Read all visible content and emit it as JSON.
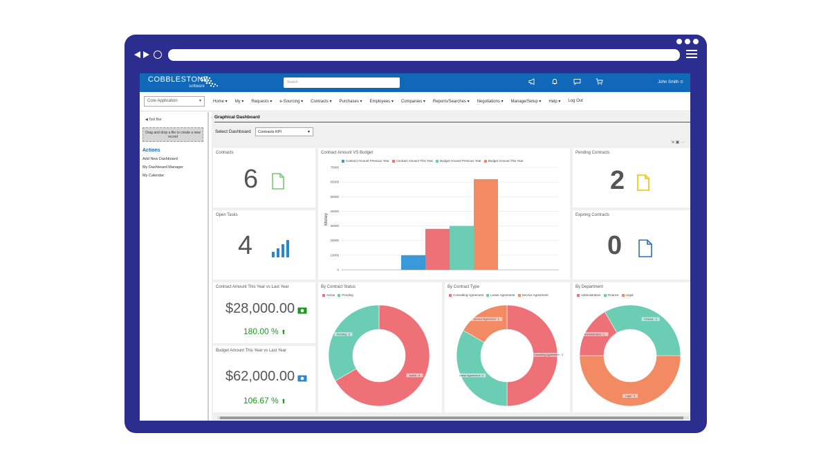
{
  "app": {
    "logo_text": "COBBLESTONE",
    "logo_sub": "software",
    "search_placeholder": "Search",
    "user_name": "John Smith"
  },
  "menubar": {
    "app_select": "Core Application",
    "items": [
      "Home ▾",
      "My ▾",
      "Requests ▾",
      "e-Sourcing ▾",
      "Contracts ▾",
      "Purchases ▾",
      "Employees ▾",
      "Companies ▾",
      "Reports/Searches ▾",
      "Negotiations ▾",
      "Manage/Setup ▾",
      "Help ▾",
      "Log Out"
    ]
  },
  "sidebar": {
    "toolbar_link": "◀ Tool Bar",
    "drop_text": "Drag and drop a file to create a new record",
    "actions_title": "Actions",
    "actions": [
      "Add New Dashboard",
      "My Dashboard Manager",
      "My Calendar"
    ]
  },
  "main": {
    "title": "Graphical Dashboard",
    "select_label": "Select Dashboard",
    "select_value": "Contracts KPI",
    "tools": "⇲ ▣ ···"
  },
  "kpis": {
    "contracts": {
      "title": "Contracts",
      "value": "6"
    },
    "open_tasks": {
      "title": "Open Tasks",
      "value": "4"
    },
    "pending": {
      "title": "Pending Contracts",
      "value": "2"
    },
    "expiring": {
      "title": "Expiring Contracts",
      "value": "0"
    },
    "contract_amount": {
      "title": "Contract Amount This Year vs Last Year",
      "value": "$28,000.00",
      "pct": "180.00 %"
    },
    "budget_amount": {
      "title": "Budget Amount This Year vs Last Year",
      "value": "$62,000.00",
      "pct": "106.67 %"
    }
  },
  "colors": {
    "blue": "#3a9ad9",
    "red": "#ef7178",
    "teal": "#6ccdb5",
    "orange": "#f28a63",
    "topbar": "#1168b8"
  },
  "chart_data": [
    {
      "type": "bar",
      "title": "Contract Amount VS Budget",
      "ylabel": "Money",
      "xlabel": "",
      "ylim": [
        0,
        70000
      ],
      "yticks": [
        "0",
        "10000",
        "20000",
        "30000",
        "40000",
        "50000",
        "60000",
        "70000"
      ],
      "series": [
        {
          "name": "Contract Amount Previous Year",
          "values": [
            10000
          ],
          "color": "#3a9ad9"
        },
        {
          "name": "Contract Amount This Year",
          "values": [
            28000
          ],
          "color": "#ef7178"
        },
        {
          "name": "Budget Amount Previous Year",
          "values": [
            30000
          ],
          "color": "#6ccdb5"
        },
        {
          "name": "Budget Amount This Year",
          "values": [
            62000
          ],
          "color": "#f28a63"
        }
      ]
    },
    {
      "type": "pie",
      "title": "By Contract Status",
      "legend": [
        {
          "name": "Active",
          "color": "#ef7178"
        },
        {
          "name": "Pending",
          "color": "#6ccdb5"
        }
      ],
      "slices": [
        {
          "name": "Active",
          "value": 4,
          "label": "Active : 4",
          "color": "#ef7178"
        },
        {
          "name": "Pending",
          "value": 2,
          "label": "Pending : 2",
          "color": "#6ccdb5"
        }
      ]
    },
    {
      "type": "pie",
      "title": "By Contract Type",
      "legend": [
        {
          "name": "Consulting Agreement",
          "color": "#ef7178"
        },
        {
          "name": "Lease Agreement",
          "color": "#6ccdb5"
        },
        {
          "name": "Service Agreement",
          "color": "#f28a63"
        }
      ],
      "slices": [
        {
          "name": "Consulting Agreement",
          "value": 3,
          "label": "Consulting Agreement : 3",
          "color": "#ef7178"
        },
        {
          "name": "Lease Agreement",
          "value": 2,
          "label": "Lease Agreement : 2",
          "color": "#6ccdb5"
        },
        {
          "name": "Service Agreement",
          "value": 1,
          "label": "Service Agreement : 1",
          "color": "#f28a63"
        }
      ]
    },
    {
      "type": "pie",
      "title": "By Department",
      "legend": [
        {
          "name": "Administration",
          "color": "#ef7178"
        },
        {
          "name": "Finance",
          "color": "#6ccdb5"
        },
        {
          "name": "Legal",
          "color": "#f28a63"
        }
      ],
      "slices": [
        {
          "name": "Legal",
          "value": 3,
          "label": "Legal : 3",
          "color": "#f28a63"
        },
        {
          "name": "Administration",
          "value": 1,
          "label": "Administration : 1",
          "color": "#ef7178"
        },
        {
          "name": "Finance",
          "value": 2,
          "label": "Finance : 2",
          "color": "#6ccdb5"
        }
      ]
    }
  ]
}
